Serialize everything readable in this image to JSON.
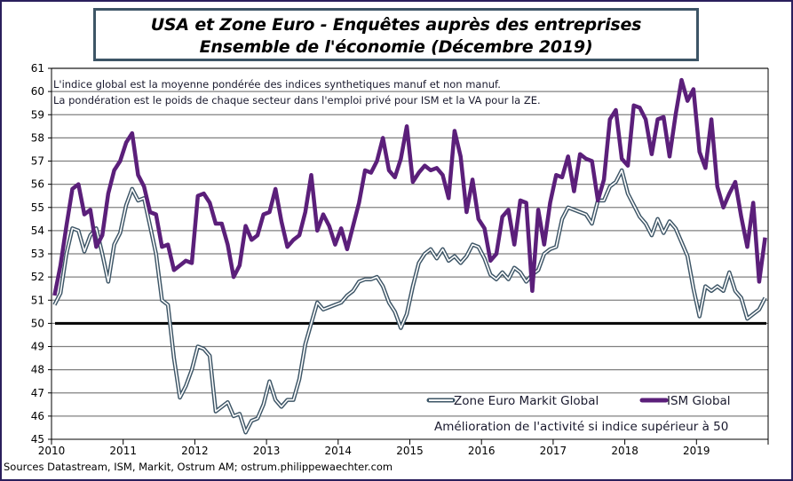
{
  "colors": {
    "frame_border": "#2a1f5c",
    "title_border": "#3d5566",
    "ism": "#5b1f7a",
    "zone_euro": "#3d5566",
    "threshold": "#000000",
    "grid": "#808080"
  },
  "header": {
    "title_line1": "USA et Zone Euro  - Enquêtes auprès des entreprises",
    "title_line2": "Ensemble de l'économie (Décembre 2019)"
  },
  "notes": {
    "line1": "L'indice global est la moyenne pondérée des indices synthetiques manuf et non manuf.",
    "line2": "La pondération est le poids de chaque secteur dans l'emploi  privé pour ISM et la VA pour la ZE."
  },
  "annotation": "Amélioration de l'activité si indice supérieur à 50",
  "source": "Sources Datastream, ISM, Markit, Ostrum AM;  ostrum.philippewaechter.com",
  "chart_data": {
    "type": "line",
    "title": "USA et Zone Euro - Enquêtes auprès des entreprises — Ensemble de l'économie (Décembre 2019)",
    "xlabel": "",
    "ylabel": "",
    "ylim": [
      45,
      61
    ],
    "yticks": [
      "45",
      "46",
      "47",
      "48",
      "49",
      "50",
      "51",
      "52",
      "53",
      "54",
      "55",
      "56",
      "57",
      "58",
      "59",
      "60",
      "61"
    ],
    "xticks": [
      "2010",
      "2011",
      "2012",
      "2013",
      "2014",
      "2015",
      "2016",
      "2017",
      "2018",
      "2019"
    ],
    "x_start": "2010-01",
    "x_end": "2019-12",
    "frequency": "monthly",
    "grid": true,
    "legend_placement": "bottom-right",
    "threshold": 50,
    "series": [
      {
        "name": "Zone Euro Markit Global",
        "style": "double-line",
        "values": [
          50.8,
          51.3,
          53.0,
          54.1,
          54.0,
          53.1,
          53.8,
          54.1,
          53.0,
          51.8,
          53.4,
          53.9,
          55.1,
          55.8,
          55.3,
          55.4,
          54.2,
          53.0,
          51.0,
          50.8,
          48.5,
          46.8,
          47.3,
          48.0,
          49.0,
          48.9,
          48.6,
          46.2,
          46.4,
          46.6,
          46.0,
          46.1,
          45.3,
          45.8,
          45.9,
          46.5,
          47.5,
          46.7,
          46.4,
          46.7,
          46.7,
          47.6,
          49.1,
          50.0,
          50.9,
          50.6,
          50.7,
          50.8,
          50.9,
          51.2,
          51.4,
          51.8,
          51.9,
          51.9,
          52.0,
          51.6,
          50.9,
          50.5,
          49.8,
          50.4,
          51.6,
          52.6,
          53.0,
          53.2,
          52.8,
          53.2,
          52.7,
          52.9,
          52.6,
          52.9,
          53.4,
          53.3,
          52.8,
          52.1,
          51.9,
          52.2,
          51.9,
          52.4,
          52.2,
          51.8,
          52.1,
          52.3,
          53.0,
          53.2,
          53.3,
          54.5,
          55.0,
          54.9,
          54.8,
          54.7,
          54.3,
          55.3,
          55.3,
          55.9,
          56.1,
          56.6,
          55.6,
          55.1,
          54.6,
          54.3,
          53.8,
          54.5,
          53.9,
          54.4,
          54.1,
          53.5,
          52.9,
          51.5,
          50.3,
          51.6,
          51.4,
          51.6,
          51.4,
          52.2,
          51.4,
          51.1,
          50.2,
          50.4,
          50.6,
          51.1
        ]
      },
      {
        "name": "ISM Global",
        "style": "thick-line",
        "values": [
          51.2,
          52.5,
          54.2,
          55.8,
          56.0,
          54.7,
          54.9,
          53.3,
          53.8,
          55.6,
          56.6,
          57.0,
          57.8,
          58.2,
          56.4,
          55.9,
          54.8,
          54.7,
          53.3,
          53.4,
          52.3,
          52.5,
          52.7,
          52.6,
          55.5,
          55.6,
          55.2,
          54.3,
          54.3,
          53.4,
          52.0,
          52.5,
          54.2,
          53.6,
          53.8,
          54.7,
          54.8,
          55.8,
          54.4,
          53.3,
          53.6,
          53.8,
          54.8,
          56.4,
          54.0,
          54.7,
          54.2,
          53.4,
          54.1,
          53.2,
          54.2,
          55.2,
          56.6,
          56.5,
          57.0,
          58.0,
          56.6,
          56.3,
          57.1,
          58.5,
          56.1,
          56.5,
          56.8,
          56.6,
          56.7,
          56.4,
          55.4,
          58.3,
          57.2,
          54.8,
          56.2,
          54.5,
          54.1,
          52.7,
          53.0,
          54.6,
          54.9,
          53.4,
          55.3,
          55.2,
          51.4,
          54.9,
          53.4,
          55.2,
          56.4,
          56.3,
          57.2,
          55.7,
          57.3,
          57.1,
          57.0,
          55.3,
          56.2,
          58.8,
          59.2,
          57.1,
          56.8,
          59.4,
          59.3,
          58.8,
          57.3,
          58.8,
          58.9,
          57.2,
          59.0,
          60.5,
          59.6,
          60.1,
          57.4,
          56.7,
          58.8,
          55.9,
          55.0,
          55.6,
          56.1,
          54.6,
          53.3,
          55.2,
          51.8,
          53.7
        ]
      }
    ]
  }
}
